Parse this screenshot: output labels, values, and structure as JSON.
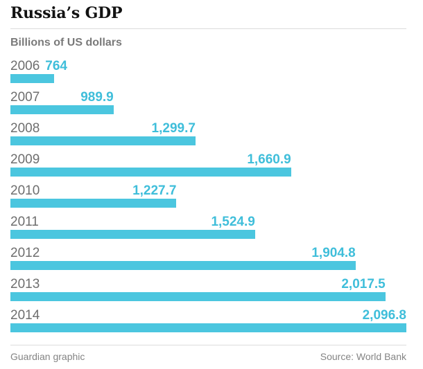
{
  "chart_data": {
    "type": "bar",
    "orientation": "horizontal",
    "title": "Russia’s GDP",
    "units_label": "Billions of US dollars",
    "categories": [
      "2006",
      "2007",
      "2008",
      "2009",
      "2010",
      "2011",
      "2012",
      "2013",
      "2014"
    ],
    "values": [
      764,
      989.9,
      1299.7,
      1660.9,
      1227.7,
      1524.9,
      1904.8,
      2017.5,
      2096.8
    ],
    "value_labels": [
      "764",
      "989.9",
      "1,299.7",
      "1,660.9",
      "1,227.7",
      "1,524.9",
      "1,904.8",
      "2,017.5",
      "2,096.8"
    ],
    "xlim": [
      600,
      2096.8
    ],
    "grid": false,
    "legend": "none",
    "value_label_position": "right-aligned-to-bar-end"
  },
  "footer": {
    "credit": "Guardian graphic",
    "source": "Source: World Bank"
  },
  "colors": {
    "bar_color": "#4bc6df",
    "value_color": "#3fbeda",
    "year_color": "#6e6e6e",
    "title_color": "#121212",
    "muted_color": "#848484",
    "divider_color": "#dcdcdc",
    "bg_color": "#ffffff"
  }
}
